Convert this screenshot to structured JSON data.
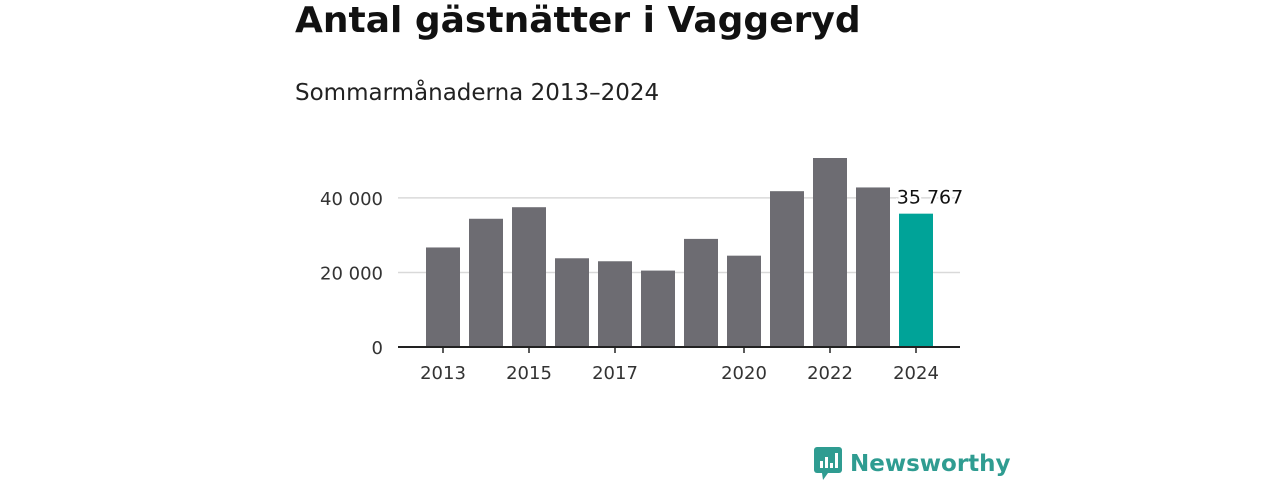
{
  "title": "Antal gästnätter i Vaggeryd",
  "subtitle": "Sommarmånaderna 2013–2024",
  "brand": {
    "name": "Newsworthy",
    "icon": "newsworthy-logo-icon",
    "color": "#2f9c91"
  },
  "chart_data": {
    "type": "bar",
    "title": "Antal gästnätter i Vaggeryd",
    "subtitle": "Sommarmånaderna 2013–2024",
    "categories": [
      "2013",
      "2014",
      "2015",
      "2016",
      "2017",
      "2018",
      "2019",
      "2020",
      "2021",
      "2022",
      "2023",
      "2024"
    ],
    "values": [
      26700,
      34400,
      37500,
      23800,
      23000,
      20500,
      29000,
      24500,
      41800,
      50700,
      42800,
      35767
    ],
    "x_tick_labels": [
      "2013",
      "",
      "2015",
      "",
      "2017",
      "",
      "",
      "2020",
      "",
      "2022",
      "",
      "2024"
    ],
    "y_ticks": [
      0,
      20000,
      40000
    ],
    "y_tick_labels": [
      "0",
      "20 000",
      "40 000"
    ],
    "ylim": [
      0,
      50700
    ],
    "highlight_index": 11,
    "highlight_label": "35 767",
    "colors": {
      "bar": "#6d6c72",
      "highlight": "#00a398",
      "grid": "#d9d9d9",
      "axis": "#222222"
    },
    "grid": true,
    "xlabel": "",
    "ylabel": ""
  }
}
